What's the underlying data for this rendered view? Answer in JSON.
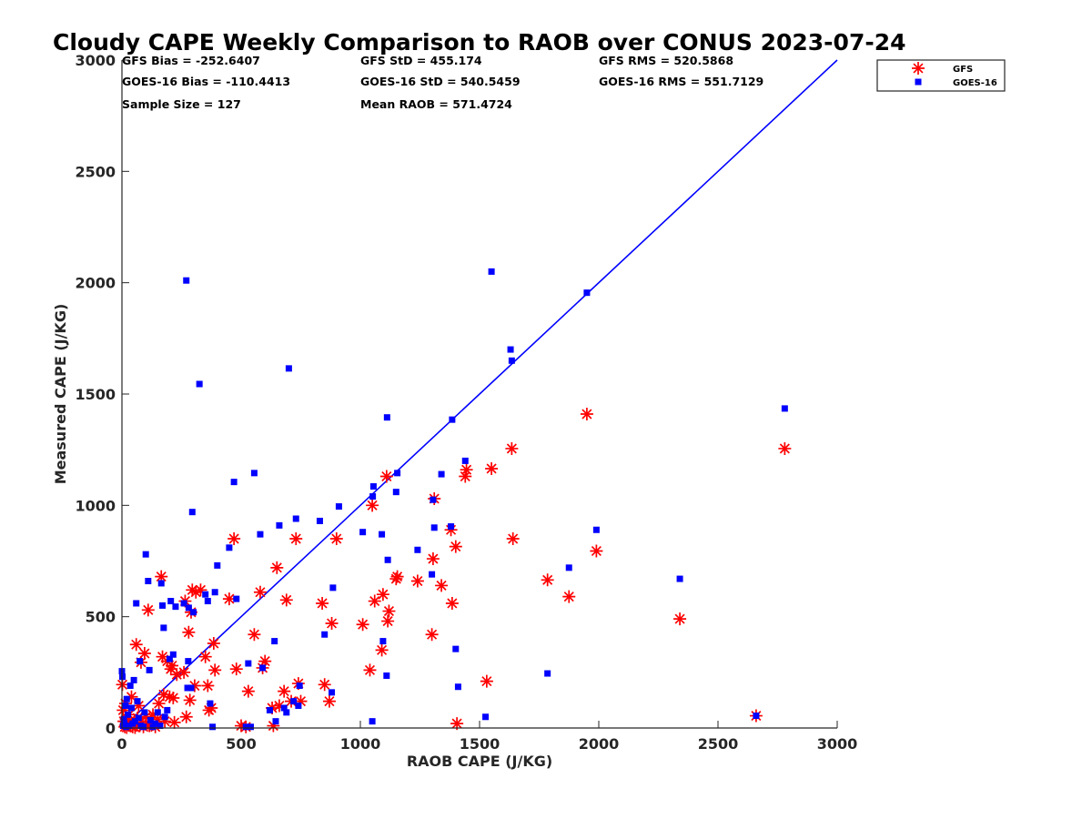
{
  "chart_data": {
    "type": "scatter",
    "title": "Cloudy CAPE Weekly Comparison to RAOB over CONUS 2023-07-24",
    "xlabel": "RAOB CAPE (J/KG)",
    "ylabel": "Measured CAPE (J/KG)",
    "xlim": [
      0,
      3000
    ],
    "ylim": [
      0,
      3000
    ],
    "xticks": [
      0,
      500,
      1000,
      1500,
      2000,
      2500,
      3000
    ],
    "yticks": [
      0,
      500,
      1000,
      1500,
      2000,
      2500,
      3000
    ],
    "grid": false,
    "legend_position": "top-right-outside",
    "stats": [
      [
        "GFS Bias = -252.6407",
        "GFS StD = 455.174",
        "GFS RMS = 520.5868"
      ],
      [
        "GOES-16 Bias = -110.4413",
        "GOES-16 StD = 540.5459",
        "GOES-16 RMS = 551.7129"
      ],
      [
        "Sample Size = 127",
        "Mean RAOB = 571.4724",
        ""
      ]
    ],
    "reference_line": {
      "x": [
        50,
        3000
      ],
      "y": [
        50,
        3000
      ],
      "color": "#0000ff"
    },
    "series": [
      {
        "name": "GFS",
        "marker": "asterisk",
        "color": "#ff0000",
        "points": [
          [
            2,
            195
          ],
          [
            5,
            80
          ],
          [
            8,
            30
          ],
          [
            12,
            5
          ],
          [
            15,
            110
          ],
          [
            18,
            40
          ],
          [
            20,
            2
          ],
          [
            25,
            15
          ],
          [
            30,
            60
          ],
          [
            35,
            10
          ],
          [
            40,
            140
          ],
          [
            45,
            5
          ],
          [
            50,
            25
          ],
          [
            55,
            2
          ],
          [
            60,
            375
          ],
          [
            65,
            45
          ],
          [
            70,
            100
          ],
          [
            75,
            10
          ],
          [
            80,
            295
          ],
          [
            85,
            20
          ],
          [
            90,
            5
          ],
          [
            95,
            335
          ],
          [
            100,
            50
          ],
          [
            110,
            530
          ],
          [
            115,
            10
          ],
          [
            120,
            30
          ],
          [
            125,
            15
          ],
          [
            130,
            60
          ],
          [
            140,
            5
          ],
          [
            150,
            40
          ],
          [
            155,
            110
          ],
          [
            165,
            680
          ],
          [
            170,
            320
          ],
          [
            175,
            150
          ],
          [
            180,
            30
          ],
          [
            190,
            300
          ],
          [
            200,
            140
          ],
          [
            205,
            265
          ],
          [
            210,
            280
          ],
          [
            215,
            135
          ],
          [
            220,
            25
          ],
          [
            230,
            240
          ],
          [
            260,
            250
          ],
          [
            265,
            570
          ],
          [
            270,
            50
          ],
          [
            280,
            430
          ],
          [
            285,
            125
          ],
          [
            290,
            520
          ],
          [
            295,
            620
          ],
          [
            305,
            190
          ],
          [
            310,
            610
          ],
          [
            330,
            620
          ],
          [
            350,
            320
          ],
          [
            360,
            190
          ],
          [
            365,
            80
          ],
          [
            375,
            90
          ],
          [
            385,
            380
          ],
          [
            390,
            260
          ],
          [
            450,
            580
          ],
          [
            470,
            850
          ],
          [
            480,
            265
          ],
          [
            500,
            10
          ],
          [
            520,
            5
          ],
          [
            530,
            165
          ],
          [
            555,
            420
          ],
          [
            580,
            610
          ],
          [
            590,
            270
          ],
          [
            600,
            300
          ],
          [
            630,
            90
          ],
          [
            635,
            10
          ],
          [
            650,
            720
          ],
          [
            660,
            100
          ],
          [
            680,
            165
          ],
          [
            690,
            575
          ],
          [
            710,
            120
          ],
          [
            730,
            850
          ],
          [
            740,
            200
          ],
          [
            750,
            120
          ],
          [
            840,
            560
          ],
          [
            850,
            195
          ],
          [
            870,
            120
          ],
          [
            880,
            470
          ],
          [
            900,
            850
          ],
          [
            1010,
            465
          ],
          [
            1040,
            260
          ],
          [
            1050,
            1000
          ],
          [
            1060,
            570
          ],
          [
            1090,
            350
          ],
          [
            1095,
            600
          ],
          [
            1110,
            1130
          ],
          [
            1115,
            480
          ],
          [
            1120,
            525
          ],
          [
            1150,
            670
          ],
          [
            1155,
            680
          ],
          [
            1240,
            660
          ],
          [
            1300,
            420
          ],
          [
            1305,
            760
          ],
          [
            1310,
            1030
          ],
          [
            1340,
            640
          ],
          [
            1380,
            890
          ],
          [
            1385,
            560
          ],
          [
            1400,
            815
          ],
          [
            1405,
            20
          ],
          [
            1440,
            1130
          ],
          [
            1445,
            1160
          ],
          [
            1530,
            210
          ],
          [
            1550,
            1165
          ],
          [
            1635,
            1255
          ],
          [
            1640,
            850
          ],
          [
            1785,
            665
          ],
          [
            1875,
            590
          ],
          [
            1950,
            1410
          ],
          [
            1990,
            795
          ],
          [
            2340,
            490
          ],
          [
            2660,
            55
          ],
          [
            2780,
            1255
          ]
        ]
      },
      {
        "name": "GOES-16",
        "marker": "square",
        "color": "#0000ff",
        "points": [
          [
            0,
            255
          ],
          [
            2,
            230
          ],
          [
            5,
            10
          ],
          [
            8,
            40
          ],
          [
            10,
            20
          ],
          [
            15,
            100
          ],
          [
            18,
            5
          ],
          [
            20,
            130
          ],
          [
            25,
            60
          ],
          [
            30,
            10
          ],
          [
            35,
            190
          ],
          [
            40,
            90
          ],
          [
            45,
            20
          ],
          [
            50,
            215
          ],
          [
            55,
            30
          ],
          [
            60,
            560
          ],
          [
            65,
            120
          ],
          [
            70,
            45
          ],
          [
            75,
            300
          ],
          [
            80,
            10
          ],
          [
            90,
            5
          ],
          [
            95,
            70
          ],
          [
            100,
            780
          ],
          [
            110,
            660
          ],
          [
            115,
            260
          ],
          [
            120,
            35
          ],
          [
            130,
            5
          ],
          [
            140,
            20
          ],
          [
            150,
            70
          ],
          [
            160,
            10
          ],
          [
            165,
            650
          ],
          [
            170,
            550
          ],
          [
            175,
            450
          ],
          [
            180,
            50
          ],
          [
            190,
            80
          ],
          [
            200,
            310
          ],
          [
            205,
            570
          ],
          [
            215,
            330
          ],
          [
            225,
            545
          ],
          [
            260,
            560
          ],
          [
            270,
            2010
          ],
          [
            275,
            180
          ],
          [
            278,
            300
          ],
          [
            280,
            540
          ],
          [
            290,
            180
          ],
          [
            295,
            970
          ],
          [
            300,
            520
          ],
          [
            325,
            1545
          ],
          [
            350,
            600
          ],
          [
            360,
            570
          ],
          [
            370,
            110
          ],
          [
            380,
            5
          ],
          [
            390,
            610
          ],
          [
            400,
            730
          ],
          [
            450,
            810
          ],
          [
            470,
            1105
          ],
          [
            480,
            580
          ],
          [
            520,
            5
          ],
          [
            530,
            290
          ],
          [
            540,
            5
          ],
          [
            555,
            1145
          ],
          [
            580,
            870
          ],
          [
            590,
            270
          ],
          [
            620,
            80
          ],
          [
            640,
            390
          ],
          [
            645,
            30
          ],
          [
            660,
            910
          ],
          [
            680,
            90
          ],
          [
            690,
            70
          ],
          [
            700,
            1615
          ],
          [
            720,
            120
          ],
          [
            730,
            940
          ],
          [
            740,
            100
          ],
          [
            745,
            190
          ],
          [
            830,
            930
          ],
          [
            850,
            420
          ],
          [
            880,
            160
          ],
          [
            885,
            630
          ],
          [
            910,
            995
          ],
          [
            1010,
            880
          ],
          [
            1050,
            30
          ],
          [
            1052,
            1040
          ],
          [
            1055,
            1085
          ],
          [
            1090,
            870
          ],
          [
            1095,
            390
          ],
          [
            1110,
            235
          ],
          [
            1112,
            1395
          ],
          [
            1115,
            755
          ],
          [
            1150,
            1060
          ],
          [
            1155,
            1145
          ],
          [
            1240,
            800
          ],
          [
            1300,
            690
          ],
          [
            1305,
            1025
          ],
          [
            1310,
            900
          ],
          [
            1340,
            1140
          ],
          [
            1380,
            905
          ],
          [
            1385,
            1385
          ],
          [
            1400,
            355
          ],
          [
            1410,
            185
          ],
          [
            1440,
            1200
          ],
          [
            1525,
            50
          ],
          [
            1550,
            2050
          ],
          [
            1630,
            1700
          ],
          [
            1635,
            1650
          ],
          [
            1785,
            245
          ],
          [
            1875,
            720
          ],
          [
            1950,
            1955
          ],
          [
            1990,
            890
          ],
          [
            2340,
            670
          ],
          [
            2660,
            55
          ],
          [
            2780,
            1435
          ]
        ]
      }
    ]
  }
}
